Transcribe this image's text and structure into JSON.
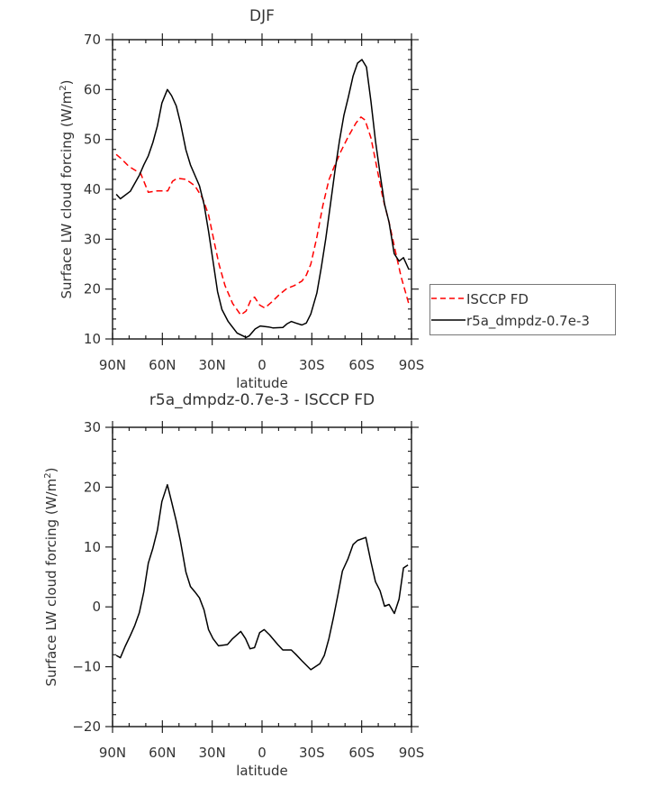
{
  "chart_data": [
    {
      "type": "line",
      "title": "DJF",
      "xlabel": "latitude",
      "ylabel": "Surface LW cloud forcing (W/m",
      "ylabel_sup": "2",
      "ylabel_close": ")",
      "xlim": [
        90,
        -90
      ],
      "ylim": [
        10,
        70
      ],
      "xticks": [
        90,
        60,
        30,
        0,
        -30,
        -60,
        -90
      ],
      "xtick_labels": [
        "90N",
        "60N",
        "30N",
        "0",
        "30S",
        "60S",
        "90S"
      ],
      "yticks": [
        10,
        20,
        30,
        40,
        50,
        60,
        70
      ],
      "ytick_labels": [
        "10",
        "20",
        "30",
        "40",
        "50",
        "60",
        "70"
      ],
      "legend_position": "right",
      "series": [
        {
          "name": "ISCCP FD",
          "color": "#ff0000",
          "dash": true,
          "x": [
            87.8,
            84.7,
            80.2,
            73.0,
            68.5,
            63.0,
            56.7,
            53.9,
            51.2,
            45.8,
            40.4,
            35.8,
            32.2,
            28.6,
            25.9,
            22.3,
            17.7,
            12.8,
            9.6,
            6.9,
            4.5,
            1.4,
            -1.7,
            -5.8,
            -10.4,
            -14.9,
            -19.4,
            -24.0,
            -26.7,
            -29.4,
            -33.0,
            -36.6,
            -40.3,
            -43.9,
            -47.5,
            -52.0,
            -56.6,
            -59.6,
            -62.0,
            -65.6,
            -69.2,
            -72.8,
            -76.5,
            -80.0,
            -83.7,
            -88.3
          ],
          "y": [
            47.0,
            46.1,
            44.6,
            43.1,
            39.4,
            39.7,
            39.7,
            41.6,
            42.2,
            42.0,
            40.7,
            38.2,
            34.9,
            29.2,
            25.0,
            20.7,
            17.1,
            14.8,
            15.6,
            17.7,
            18.4,
            16.8,
            16.2,
            17.4,
            18.9,
            20.1,
            20.7,
            21.6,
            22.8,
            25.0,
            30.4,
            36.7,
            41.9,
            44.9,
            47.6,
            50.6,
            53.3,
            54.5,
            53.9,
            50.3,
            44.3,
            38.2,
            33.4,
            28.0,
            22.5,
            17.1
          ]
        },
        {
          "name": "r5a_dmpdz-0.7e-3",
          "color": "#000000",
          "dash": false,
          "x": [
            87.8,
            85.3,
            79.3,
            73.9,
            71.2,
            68.5,
            65.7,
            63.0,
            60.3,
            57.0,
            54.5,
            51.6,
            49.1,
            45.8,
            43.1,
            40.4,
            37.7,
            34.9,
            32.2,
            29.5,
            26.8,
            24.1,
            20.4,
            15.0,
            9.6,
            7.8,
            4.1,
            1.1,
            -4.0,
            -6.7,
            -12.5,
            -14.9,
            -17.6,
            -20.3,
            -24.0,
            -26.7,
            -29.4,
            -33.0,
            -35.7,
            -38.4,
            -41.2,
            -43.9,
            -46.6,
            -49.3,
            -52.0,
            -54.8,
            -57.5,
            -60.2,
            -62.9,
            -65.6,
            -68.3,
            -71.1,
            -73.8,
            -76.5,
            -79.6,
            -82.5,
            -85.2,
            -88.3
          ],
          "y": [
            39.0,
            38.1,
            39.6,
            42.8,
            44.9,
            46.7,
            49.4,
            52.7,
            57.3,
            60.0,
            58.8,
            56.7,
            53.3,
            47.9,
            44.9,
            42.8,
            40.7,
            37.0,
            31.6,
            25.6,
            19.5,
            15.9,
            13.5,
            11.2,
            10.3,
            10.6,
            12.0,
            12.6,
            12.4,
            12.2,
            12.3,
            13.0,
            13.5,
            13.2,
            12.8,
            13.2,
            15.0,
            19.2,
            24.3,
            30.1,
            37.0,
            43.7,
            49.7,
            54.8,
            58.5,
            62.7,
            65.3,
            66.0,
            64.5,
            57.6,
            49.7,
            43.1,
            37.0,
            33.4,
            27.1,
            25.6,
            26.3,
            24.0
          ]
        }
      ]
    },
    {
      "type": "line",
      "title": "r5a_dmpdz-0.7e-3 - ISCCP FD",
      "xlabel": "latitude",
      "ylabel": "Surface LW cloud forcing (W/m",
      "ylabel_sup": "2",
      "ylabel_close": ")",
      "xlim": [
        90,
        -90
      ],
      "ylim": [
        -20,
        30
      ],
      "xticks": [
        90,
        60,
        30,
        0,
        -30,
        -60,
        -90
      ],
      "xtick_labels": [
        "90N",
        "60N",
        "30N",
        "0",
        "30S",
        "60S",
        "90S"
      ],
      "yticks": [
        -20,
        -10,
        0,
        10,
        20,
        30
      ],
      "ytick_labels": [
        "-20",
        "-10",
        "0",
        "10",
        "20",
        "30"
      ],
      "series": [
        {
          "name": "r5a_dmpdz-0.7e-3 - ISCCP FD",
          "color": "#000000",
          "dash": false,
          "x": [
            87.8,
            85.3,
            82.4,
            79.3,
            76.6,
            73.9,
            71.2,
            68.5,
            65.7,
            63.0,
            60.3,
            57.0,
            54.5,
            51.6,
            49.1,
            45.8,
            43.1,
            40.4,
            37.7,
            34.9,
            32.2,
            29.5,
            26.2,
            20.8,
            17.7,
            12.8,
            9.9,
            7.2,
            4.5,
            1.4,
            -1.3,
            -4.6,
            -9.5,
            -12.5,
            -17.6,
            -20.3,
            -24.0,
            -29.4,
            -34.8,
            -37.5,
            -40.3,
            -43.0,
            -45.7,
            -48.4,
            -51.7,
            -54.8,
            -57.5,
            -62.5,
            -65.6,
            -68.3,
            -71.1,
            -73.8,
            -76.5,
            -79.7,
            -82.5,
            -85.2,
            -87.9
          ],
          "y": [
            -8.1,
            -8.5,
            -6.6,
            -4.8,
            -3.1,
            -1.0,
            2.5,
            7.3,
            9.8,
            12.8,
            17.6,
            20.4,
            17.6,
            14.3,
            11.0,
            5.8,
            3.4,
            2.5,
            1.5,
            -0.5,
            -3.8,
            -5.3,
            -6.5,
            -6.3,
            -5.3,
            -4.1,
            -5.3,
            -7.0,
            -6.8,
            -4.3,
            -3.8,
            -4.7,
            -6.3,
            -7.2,
            -7.2,
            -7.9,
            -9.0,
            -10.5,
            -9.5,
            -8.1,
            -5.3,
            -1.8,
            2.0,
            6.0,
            8.0,
            10.4,
            11.1,
            11.6,
            7.5,
            4.2,
            2.7,
            0.1,
            0.4,
            -1.1,
            1.3,
            6.5,
            7.0
          ]
        }
      ]
    }
  ]
}
